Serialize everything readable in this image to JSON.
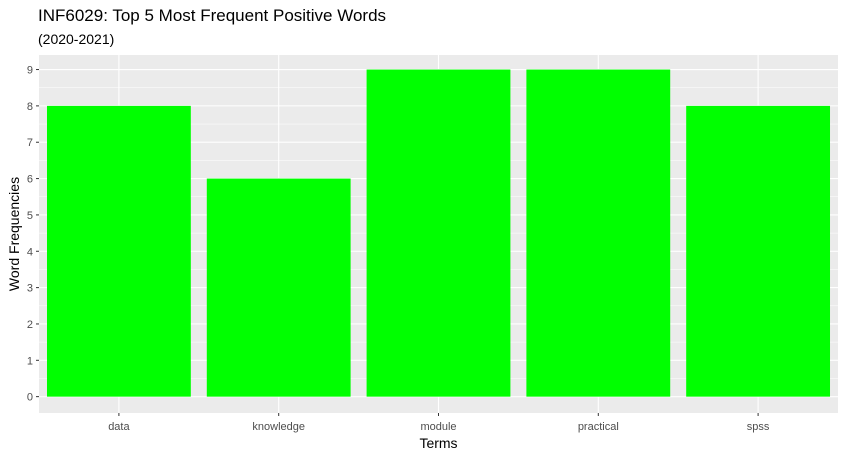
{
  "chart_data": {
    "type": "bar",
    "title": "INF6029: Top 5 Most Frequent Positive Words",
    "subtitle": "(2020-2021)",
    "xlabel": "Terms",
    "ylabel": "Word Frequencies",
    "categories": [
      "data",
      "knowledge",
      "module",
      "practical",
      "spss"
    ],
    "values": [
      8,
      6,
      9,
      9,
      8
    ],
    "ylim": [
      0,
      9.4
    ],
    "yticks": [
      0,
      1,
      2,
      3,
      4,
      5,
      6,
      7,
      8,
      9
    ],
    "bar_color": "#00FF00",
    "panel_color": "#EBEBEB",
    "grid": true,
    "legend": "none"
  }
}
